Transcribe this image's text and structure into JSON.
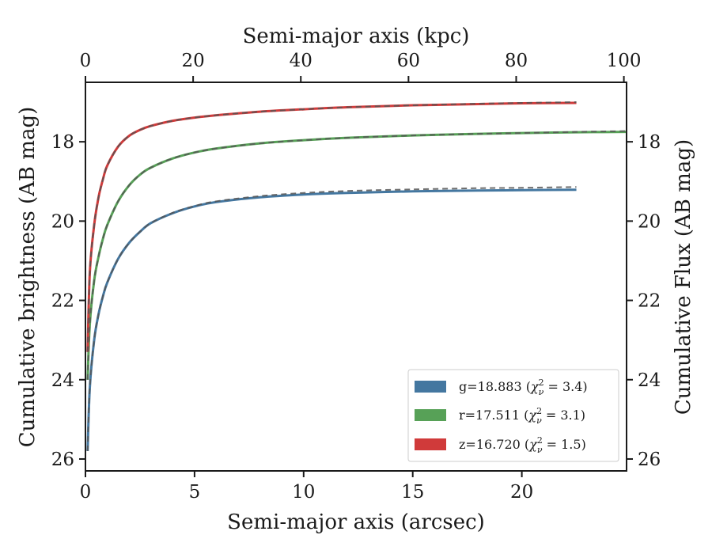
{
  "chart_data": {
    "type": "line",
    "xlabel": "Semi-major axis (arcsec)",
    "x_top_label": "Semi-major axis (kpc)",
    "ylabel": "Cumulative brightness (AB mag)",
    "y_right_label": "Cumulative Flux (AB mag)",
    "xlim": [
      0,
      24.8
    ],
    "ylim": [
      26.3,
      16.5
    ],
    "y_inverted": true,
    "x_top_lim": [
      0,
      100.5
    ],
    "x_ticks": [
      0,
      5,
      10,
      15,
      20
    ],
    "x_top_ticks": [
      0,
      20,
      40,
      60,
      80,
      100
    ],
    "y_ticks": [
      18,
      20,
      22,
      24,
      26
    ],
    "grid": false,
    "legend_position": "lower-right",
    "series": [
      {
        "name": "g=18.883 (χ²ν = 3.4)",
        "legend_main": "g=18.883 (",
        "legend_chi": "χ",
        "legend_sup": "2",
        "legend_sub": "ν",
        "legend_val": " = 3.4)",
        "color": "#4477a0",
        "x": [
          0.1,
          0.2,
          0.4,
          0.6,
          0.8,
          1.0,
          1.5,
          2.0,
          2.5,
          3.0,
          4.0,
          5.0,
          6.0,
          8.0,
          10.0,
          12.0,
          15.0,
          18.0,
          20.0,
          22.5
        ],
        "values": [
          25.8,
          24.2,
          23.0,
          22.35,
          21.9,
          21.55,
          20.95,
          20.55,
          20.27,
          20.05,
          19.8,
          19.63,
          19.52,
          19.4,
          19.33,
          19.29,
          19.25,
          19.23,
          19.22,
          19.21
        ],
        "model_values": [
          25.8,
          24.2,
          23.0,
          22.35,
          21.9,
          21.55,
          20.95,
          20.55,
          20.27,
          20.05,
          19.79,
          19.62,
          19.5,
          19.37,
          19.29,
          19.24,
          19.2,
          19.17,
          19.16,
          19.14
        ]
      },
      {
        "name": "r=17.511 (χ²ν = 3.1)",
        "legend_main": "r=17.511 (",
        "legend_chi": "χ",
        "legend_sup": "2",
        "legend_sub": "ν",
        "legend_val": " = 3.1)",
        "color": "#57a157",
        "x": [
          0.1,
          0.2,
          0.4,
          0.6,
          0.8,
          1.0,
          1.5,
          2.0,
          2.5,
          3.0,
          4.0,
          5.0,
          6.0,
          8.0,
          10.0,
          12.0,
          15.0,
          18.0,
          20.0,
          22.5,
          24.8
        ],
        "values": [
          24.0,
          22.6,
          21.5,
          20.9,
          20.45,
          20.1,
          19.5,
          19.1,
          18.83,
          18.65,
          18.42,
          18.27,
          18.17,
          18.04,
          17.96,
          17.9,
          17.84,
          17.8,
          17.78,
          17.76,
          17.75
        ],
        "model_values": [
          24.0,
          22.6,
          21.5,
          20.9,
          20.45,
          20.1,
          19.5,
          19.1,
          18.83,
          18.65,
          18.42,
          18.27,
          18.17,
          18.04,
          17.96,
          17.9,
          17.84,
          17.8,
          17.78,
          17.75,
          17.73
        ]
      },
      {
        "name": "z=16.720 (χ²ν = 1.5)",
        "legend_main": "z=16.720 (",
        "legend_chi": "χ",
        "legend_sup": "2",
        "legend_sub": "ν",
        "legend_val": " = 1.5)",
        "color": "#d03a3a",
        "x": [
          0.1,
          0.2,
          0.4,
          0.6,
          0.8,
          1.0,
          1.5,
          2.0,
          2.5,
          3.0,
          4.0,
          5.0,
          6.0,
          8.0,
          10.0,
          12.0,
          15.0,
          18.0,
          20.0,
          22.5
        ],
        "values": [
          23.3,
          21.3,
          20.1,
          19.4,
          18.95,
          18.6,
          18.12,
          17.85,
          17.7,
          17.6,
          17.47,
          17.39,
          17.33,
          17.24,
          17.18,
          17.13,
          17.08,
          17.05,
          17.03,
          17.02
        ],
        "model_values": [
          23.3,
          21.3,
          20.1,
          19.4,
          18.95,
          18.6,
          18.12,
          17.85,
          17.7,
          17.6,
          17.47,
          17.39,
          17.33,
          17.24,
          17.18,
          17.13,
          17.08,
          17.04,
          17.02,
          17.0
        ]
      }
    ]
  }
}
